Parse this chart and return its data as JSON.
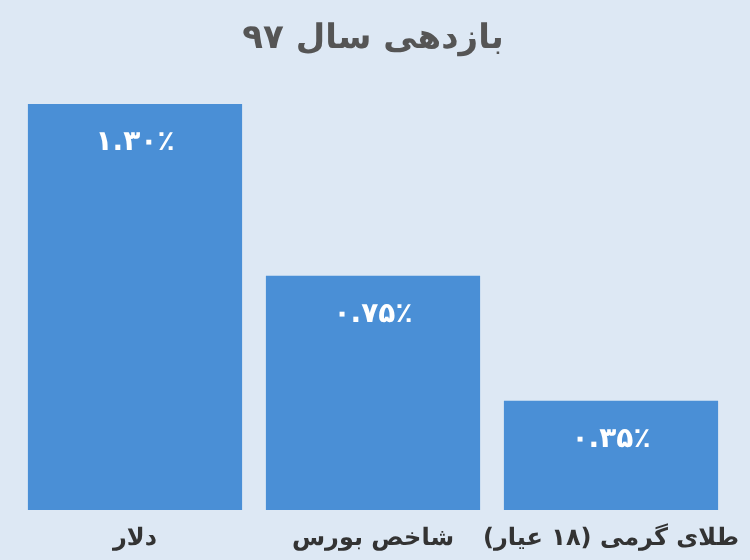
{
  "chart_data": {
    "type": "bar",
    "title": "بازدهی سال ۹۷",
    "categories": [
      "دلار",
      "شاخص بورس",
      "طلای گرمی (۱۸ عیار)"
    ],
    "values": [
      1.3,
      0.75,
      0.35
    ],
    "value_labels": [
      "۱.۳۰٪",
      "۰.۷۵٪",
      "۰.۳۵٪"
    ],
    "color": "#4a8fd6"
  }
}
